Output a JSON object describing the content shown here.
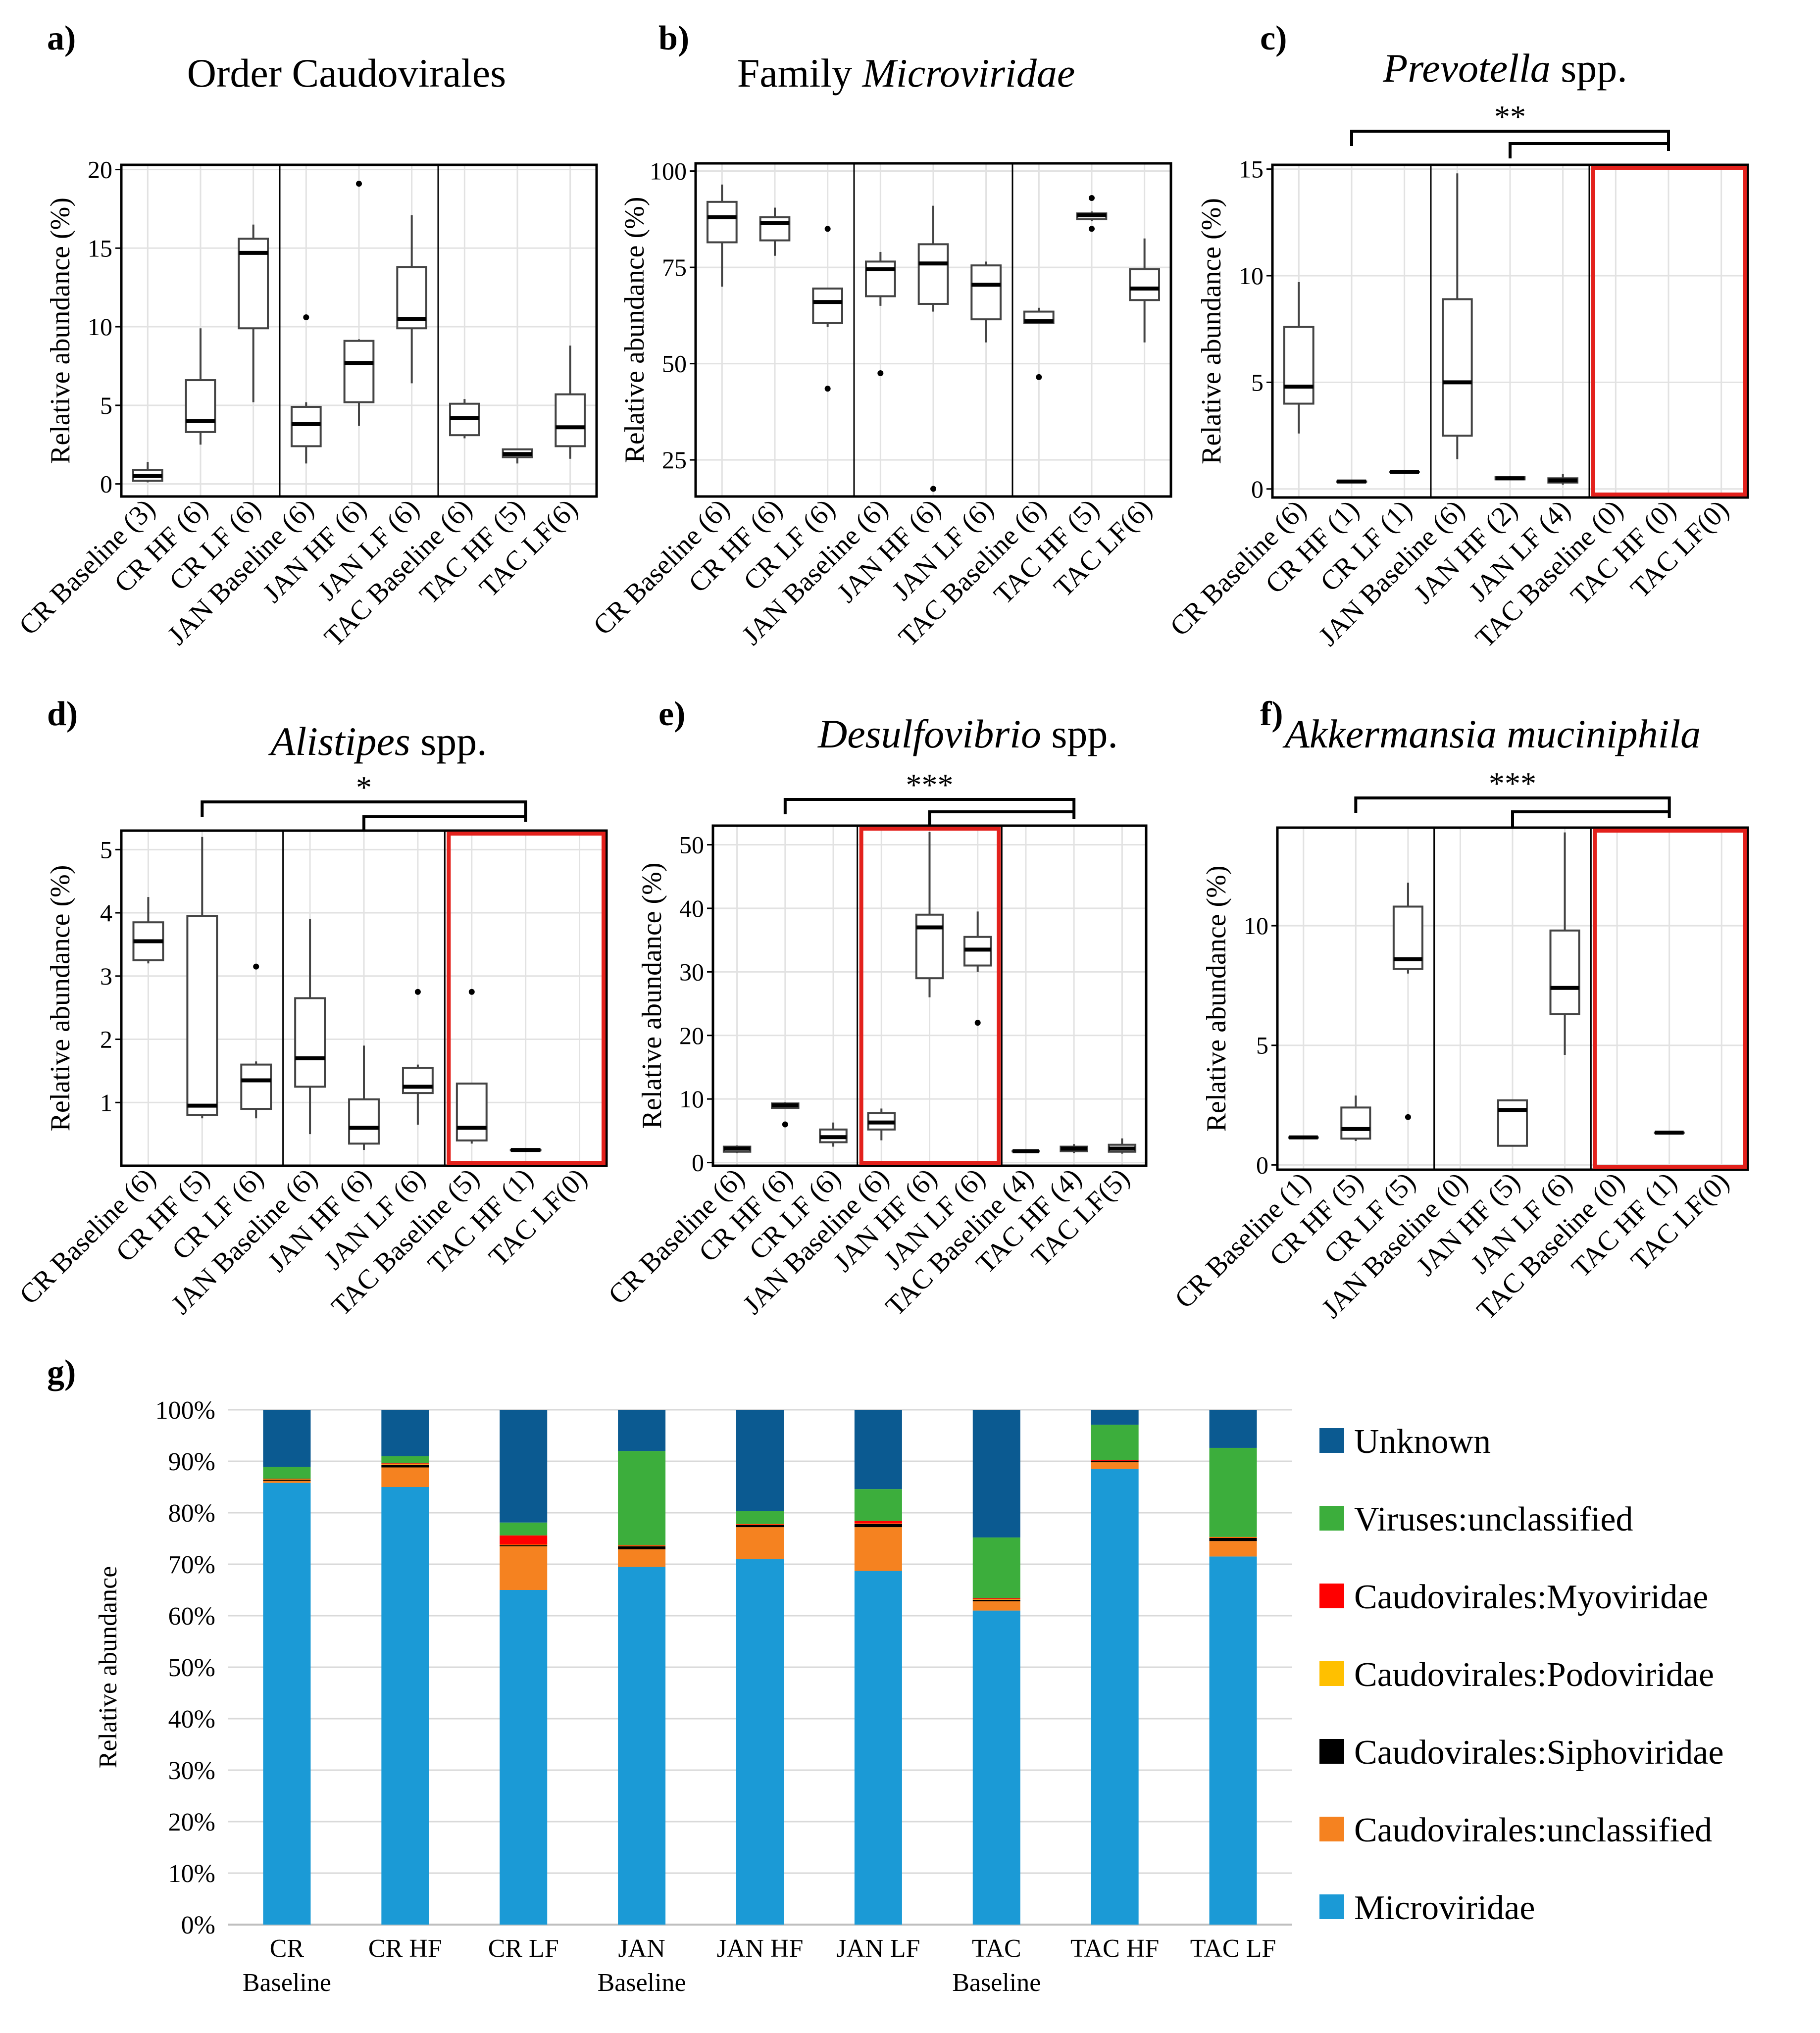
{
  "boxplots": [
    {
      "letter": "a)",
      "title": "Order Caudovirales",
      "italic": false,
      "ylabel": "Relative abundance (%)",
      "ylim": [
        -0.8,
        20.3
      ],
      "yticks": [
        0,
        5,
        10,
        15,
        20
      ],
      "groups": [
        "CR Baseline (3)",
        "CR HF (6)",
        "CR LF (6)",
        "JAN Baseline (6)",
        "JAN HF (6)",
        "JAN LF (6)",
        "TAC Baseline (6)",
        "TAC HF (5)",
        "TAC LF(6)"
      ],
      "boxes": [
        {
          "min": 0.1,
          "q1": 0.2,
          "med": 0.5,
          "q3": 0.9,
          "max": 1.4,
          "out": []
        },
        {
          "min": 2.5,
          "q1": 3.3,
          "med": 4.0,
          "q3": 6.6,
          "max": 9.9,
          "out": []
        },
        {
          "min": 5.2,
          "q1": 9.9,
          "med": 14.7,
          "q3": 15.6,
          "max": 16.5,
          "out": []
        },
        {
          "min": 1.3,
          "q1": 2.4,
          "med": 3.8,
          "q3": 4.9,
          "max": 5.2,
          "out": [
            10.6
          ]
        },
        {
          "min": 3.7,
          "q1": 5.2,
          "med": 7.7,
          "q3": 9.1,
          "max": 9.2,
          "out": [
            19.1
          ]
        },
        {
          "min": 6.4,
          "q1": 9.9,
          "med": 10.5,
          "q3": 13.8,
          "max": 17.1,
          "out": []
        },
        {
          "min": 2.9,
          "q1": 3.1,
          "med": 4.2,
          "q3": 5.1,
          "max": 5.4,
          "out": []
        },
        {
          "min": 1.3,
          "q1": 1.7,
          "med": 1.9,
          "q3": 2.2,
          "max": 2.2,
          "out": []
        },
        {
          "min": 1.6,
          "q1": 2.4,
          "med": 3.6,
          "q3": 5.7,
          "max": 8.8,
          "out": []
        }
      ],
      "red_group": null,
      "sig": null
    },
    {
      "letter": "b)",
      "title_plain": "Family ",
      "title_italic": "Microviridae",
      "italic": true,
      "ylabel": "Relative abundance (%)",
      "ylim": [
        15.5,
        102
      ],
      "yticks": [
        25,
        50,
        75,
        100
      ],
      "groups": [
        "CR Baseline (6)",
        "CR HF (6)",
        "CR LF (6)",
        "JAN Baseline (6)",
        "JAN HF (6)",
        "JAN LF (6)",
        "TAC Baseline (6)",
        "TAC HF (5)",
        "TAC LF(6)"
      ],
      "boxes": [
        {
          "min": 70,
          "q1": 81.5,
          "med": 88,
          "q3": 92,
          "max": 96.5,
          "out": []
        },
        {
          "min": 78,
          "q1": 82,
          "med": 86.5,
          "q3": 88,
          "max": 90.5,
          "out": []
        },
        {
          "min": 59.5,
          "q1": 60.5,
          "med": 66,
          "q3": 69.5,
          "max": 69.5,
          "out": [
            85,
            43.5
          ]
        },
        {
          "min": 65,
          "q1": 67.5,
          "med": 74.5,
          "q3": 76.5,
          "max": 79,
          "out": [
            47.5
          ]
        },
        {
          "min": 63.5,
          "q1": 65.5,
          "med": 76,
          "q3": 81,
          "max": 91,
          "out": [
            17.5
          ]
        },
        {
          "min": 55.5,
          "q1": 61.5,
          "med": 70.5,
          "q3": 75.5,
          "max": 76.5,
          "out": []
        },
        {
          "min": 60.5,
          "q1": 60.5,
          "med": 61,
          "q3": 63.5,
          "max": 64.5,
          "out": [
            46.5
          ]
        },
        {
          "min": 87,
          "q1": 87.5,
          "med": 88.5,
          "q3": 89,
          "max": 89.5,
          "out": [
            93,
            85
          ]
        },
        {
          "min": 55.5,
          "q1": 66.5,
          "med": 69.5,
          "q3": 74.5,
          "max": 82.5,
          "out": []
        }
      ],
      "red_group": null,
      "sig": null
    },
    {
      "letter": "c)",
      "title_italic": "Prevotella",
      "title_plain": " spp.",
      "italic": true,
      "ylabel": "Relative abundance (%)",
      "ylim": [
        -0.4,
        15.2
      ],
      "yticks": [
        0,
        5,
        10,
        15
      ],
      "groups": [
        "CR Baseline (6)",
        "CR HF (1)",
        "CR LF (1)",
        "JAN Baseline (6)",
        "JAN HF (2)",
        "JAN LF (4)",
        "TAC Baseline (0)",
        "TAC HF (0)",
        "TAC LF(0)"
      ],
      "boxes": [
        {
          "min": 2.6,
          "q1": 4.0,
          "med": 4.8,
          "q3": 7.6,
          "max": 9.7,
          "out": []
        },
        {
          "min": 0.35,
          "q1": 0.35,
          "med": 0.35,
          "q3": 0.35,
          "max": 0.35,
          "out": []
        },
        {
          "min": 0.8,
          "q1": 0.8,
          "med": 0.8,
          "q3": 0.8,
          "max": 0.8,
          "out": []
        },
        {
          "min": 1.4,
          "q1": 2.5,
          "med": 5.0,
          "q3": 8.9,
          "max": 14.8,
          "out": []
        },
        {
          "min": 0.45,
          "q1": 0.45,
          "med": 0.5,
          "q3": 0.55,
          "max": 0.6,
          "out": []
        },
        {
          "min": 0.2,
          "q1": 0.3,
          "med": 0.4,
          "q3": 0.5,
          "max": 0.7,
          "out": []
        },
        null,
        null,
        null
      ],
      "red_group": 2,
      "sig": "**"
    },
    {
      "letter": "d)",
      "title_italic": "Alistipes",
      "title_plain": " spp.",
      "italic": true,
      "ylabel": "Relative abundance (%)",
      "ylim": [
        0,
        5.3
      ],
      "yticks": [
        1,
        2,
        3,
        4,
        5
      ],
      "groups": [
        "CR Baseline (6)",
        "CR HF (5)",
        "CR LF (6)",
        "JAN Baseline (6)",
        "JAN HF (6)",
        "JAN LF (6)",
        "TAC Baseline (5)",
        "TAC HF (1)",
        "TAC LF(0)"
      ],
      "boxes": [
        {
          "min": 3.2,
          "q1": 3.25,
          "med": 3.55,
          "q3": 3.85,
          "max": 4.25,
          "out": []
        },
        {
          "min": 0.75,
          "q1": 0.8,
          "med": 0.95,
          "q3": 3.95,
          "max": 5.2,
          "out": []
        },
        {
          "min": 0.75,
          "q1": 0.9,
          "med": 1.35,
          "q3": 1.6,
          "max": 1.65,
          "out": [
            3.15
          ]
        },
        {
          "min": 0.5,
          "q1": 1.25,
          "med": 1.7,
          "q3": 2.65,
          "max": 3.9,
          "out": []
        },
        {
          "min": 0.25,
          "q1": 0.35,
          "med": 0.6,
          "q3": 1.05,
          "max": 1.9,
          "out": []
        },
        {
          "min": 0.65,
          "q1": 1.15,
          "med": 1.25,
          "q3": 1.55,
          "max": 1.6,
          "out": [
            2.75
          ]
        },
        {
          "min": 0.35,
          "q1": 0.4,
          "med": 0.6,
          "q3": 1.3,
          "max": 1.3,
          "out": [
            2.75
          ]
        },
        {
          "min": 0.25,
          "q1": 0.25,
          "med": 0.25,
          "q3": 0.25,
          "max": 0.25,
          "out": []
        },
        null
      ],
      "red_group": 2,
      "sig": "*"
    },
    {
      "letter": "e)",
      "title_italic": "Desulfovibrio",
      "title_plain": " spp.",
      "italic": true,
      "ylabel": "Relative abundance (%)",
      "ylim": [
        -0.5,
        53
      ],
      "yticks": [
        0,
        10,
        20,
        30,
        40,
        50
      ],
      "groups": [
        "CR Baseline (6)",
        "CR HF (6)",
        "CR LF (6)",
        "JAN Baseline (6)",
        "JAN HF (6)",
        "JAN LF (6)",
        "TAC Baseline (4)",
        "TAC HF (4)",
        "TAC LF(5)"
      ],
      "boxes": [
        {
          "min": 1.5,
          "q1": 1.7,
          "med": 2.2,
          "q3": 2.5,
          "max": 2.7,
          "out": []
        },
        {
          "min": 8.5,
          "q1": 8.6,
          "med": 9.0,
          "q3": 9.3,
          "max": 9.5,
          "out": [
            6.0
          ]
        },
        {
          "min": 2.5,
          "q1": 3.2,
          "med": 4.0,
          "q3": 5.2,
          "max": 6.3,
          "out": []
        },
        {
          "min": 3.5,
          "q1": 5.2,
          "med": 6.3,
          "q3": 7.8,
          "max": 8.5,
          "out": []
        },
        {
          "min": 26,
          "q1": 29,
          "med": 37,
          "q3": 39,
          "max": 52,
          "out": []
        },
        {
          "min": 30,
          "q1": 31,
          "med": 33.5,
          "q3": 35.5,
          "max": 39.5,
          "out": [
            22
          ]
        },
        {
          "min": 1.8,
          "q1": 1.8,
          "med": 1.8,
          "q3": 1.8,
          "max": 1.8,
          "out": []
        },
        {
          "min": 1.5,
          "q1": 1.8,
          "med": 2.2,
          "q3": 2.5,
          "max": 2.9,
          "out": []
        },
        {
          "min": 1.4,
          "q1": 1.7,
          "med": 2.2,
          "q3": 2.8,
          "max": 3.8,
          "out": []
        }
      ],
      "red_group": 1,
      "sig": "***"
    },
    {
      "letter": "f)",
      "title_italic": "Akkermansia muciniphila",
      "title_plain": "",
      "italic": true,
      "ylabel": "Relative abundance (%)",
      "ylim": [
        -0.2,
        14.1
      ],
      "yticks": [
        0,
        5,
        10
      ],
      "groups": [
        "CR Baseline (1)",
        "CR HF (5)",
        "CR LF (5)",
        "JAN Baseline (0)",
        "JAN HF (5)",
        "JAN LF (6)",
        "TAC Baseline (0)",
        "TAC HF (1)",
        "TAC LF(0)"
      ],
      "boxes": [
        {
          "min": 1.15,
          "q1": 1.15,
          "med": 1.15,
          "q3": 1.15,
          "max": 1.15,
          "out": []
        },
        {
          "min": 1.0,
          "q1": 1.1,
          "med": 1.5,
          "q3": 2.4,
          "max": 2.9,
          "out": []
        },
        {
          "min": 8.0,
          "q1": 8.2,
          "med": 8.6,
          "q3": 10.8,
          "max": 11.8,
          "out": [
            2.0
          ]
        },
        null,
        {
          "min": 0.8,
          "q1": 0.8,
          "med": 2.3,
          "q3": 2.7,
          "max": 2.7,
          "out": []
        },
        {
          "min": 4.6,
          "q1": 6.3,
          "med": 7.4,
          "q3": 9.8,
          "max": 13.9,
          "out": []
        },
        null,
        {
          "min": 1.35,
          "q1": 1.35,
          "med": 1.35,
          "q3": 1.35,
          "max": 1.35,
          "out": []
        },
        null
      ],
      "red_group": 2,
      "sig": "***"
    }
  ],
  "chart_data": {
    "type": "bar",
    "stacked": true,
    "letter": "g)",
    "ylabel": "Relative abundance",
    "yticks": [
      "0%",
      "10%",
      "20%",
      "30%",
      "40%",
      "50%",
      "60%",
      "70%",
      "80%",
      "90%",
      "100%"
    ],
    "categories": [
      {
        "line1": "CR",
        "line2": "Baseline"
      },
      {
        "line1": "CR HF",
        "line2": ""
      },
      {
        "line1": "CR LF",
        "line2": ""
      },
      {
        "line1": "JAN",
        "line2": "Baseline"
      },
      {
        "line1": "JAN HF",
        "line2": ""
      },
      {
        "line1": "JAN LF",
        "line2": ""
      },
      {
        "line1": "TAC",
        "line2": "Baseline"
      },
      {
        "line1": "TAC HF",
        "line2": ""
      },
      {
        "line1": "TAC LF",
        "line2": ""
      }
    ],
    "series": [
      {
        "name": "Microviridae",
        "color": "#1b9ad6",
        "values": [
          85.8,
          85.0,
          65.0,
          69.5,
          71.0,
          68.7,
          61.0,
          88.5,
          71.5
        ]
      },
      {
        "name": "Caudovirales:unclassified",
        "color": "#f58220",
        "values": [
          0.4,
          3.8,
          8.5,
          3.4,
          6.2,
          8.5,
          1.8,
          1.3,
          3.0
        ]
      },
      {
        "name": "Caudovirales:Siphoviridae",
        "color": "#000000",
        "values": [
          0.2,
          0.5,
          0.2,
          0.6,
          0.4,
          0.6,
          0.3,
          0.2,
          0.6
        ]
      },
      {
        "name": "Caudovirales:Podoviridae",
        "color": "#ffc000",
        "values": [
          0.1,
          0.1,
          0.1,
          0.1,
          0.1,
          0.1,
          0.1,
          0.1,
          0.1
        ]
      },
      {
        "name": "Caudovirales:Myoviridae",
        "color": "#ff0000",
        "values": [
          0.1,
          0.2,
          1.8,
          0.1,
          0.1,
          0.5,
          0.2,
          0.1,
          0.1
        ]
      },
      {
        "name": "Viruses:unclassified",
        "color": "#3cae3c",
        "values": [
          2.3,
          1.4,
          2.5,
          18.3,
          2.5,
          6.2,
          11.8,
          6.9,
          17.3
        ]
      },
      {
        "name": "Unknown",
        "color": "#0b5a91",
        "values": [
          11.1,
          9.0,
          21.9,
          8.0,
          19.7,
          15.4,
          24.8,
          2.9,
          7.4
        ]
      }
    ]
  }
}
